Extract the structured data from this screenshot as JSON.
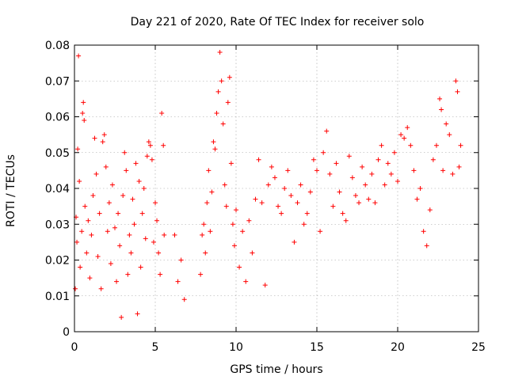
{
  "chart_data": {
    "type": "scatter",
    "title": "Day 221 of 2020, Rate Of TEC Index for receiver solo",
    "xlabel": "GPS time / hours",
    "ylabel": "ROTI / TECUs",
    "xlim": [
      0,
      25
    ],
    "ylim": [
      0,
      0.08
    ],
    "xticks": [
      0,
      5,
      10,
      15,
      20,
      25
    ],
    "xtick_labels": [
      "0",
      "5",
      "10",
      "15",
      "20",
      "25"
    ],
    "yticks": [
      0,
      0.01,
      0.02,
      0.03,
      0.04,
      0.05,
      0.06,
      0.07,
      0.08
    ],
    "ytick_labels": [
      "0",
      "0.01",
      "0.02",
      "0.03",
      "0.04",
      "0.05",
      "0.06",
      "0.07",
      "0.08"
    ],
    "grid": true,
    "marker": "+",
    "color": "#ff0000",
    "series": [
      {
        "name": "ROTI",
        "points": [
          [
            0.05,
            0.012
          ],
          [
            0.1,
            0.032
          ],
          [
            0.15,
            0.025
          ],
          [
            0.2,
            0.051
          ],
          [
            0.25,
            0.077
          ],
          [
            0.3,
            0.042
          ],
          [
            0.35,
            0.018
          ],
          [
            0.45,
            0.028
          ],
          [
            0.5,
            0.061
          ],
          [
            0.55,
            0.064
          ],
          [
            0.6,
            0.059
          ],
          [
            0.65,
            0.035
          ],
          [
            0.75,
            0.022
          ],
          [
            0.85,
            0.031
          ],
          [
            0.95,
            0.015
          ],
          [
            1.05,
            0.027
          ],
          [
            1.15,
            0.038
          ],
          [
            1.25,
            0.054
          ],
          [
            1.35,
            0.044
          ],
          [
            1.45,
            0.021
          ],
          [
            1.55,
            0.033
          ],
          [
            1.65,
            0.012
          ],
          [
            1.75,
            0.053
          ],
          [
            1.85,
            0.055
          ],
          [
            1.95,
            0.046
          ],
          [
            2.05,
            0.028
          ],
          [
            2.15,
            0.036
          ],
          [
            2.25,
            0.019
          ],
          [
            2.35,
            0.041
          ],
          [
            2.5,
            0.029
          ],
          [
            2.6,
            0.014
          ],
          [
            2.7,
            0.033
          ],
          [
            2.8,
            0.024
          ],
          [
            2.9,
            0.004
          ],
          [
            3.0,
            0.038
          ],
          [
            3.1,
            0.05
          ],
          [
            3.2,
            0.045
          ],
          [
            3.3,
            0.016
          ],
          [
            3.4,
            0.027
          ],
          [
            3.5,
            0.022
          ],
          [
            3.6,
            0.037
          ],
          [
            3.7,
            0.03
          ],
          [
            3.8,
            0.047
          ],
          [
            3.9,
            0.005
          ],
          [
            4.0,
            0.042
          ],
          [
            4.1,
            0.018
          ],
          [
            4.2,
            0.033
          ],
          [
            4.3,
            0.04
          ],
          [
            4.4,
            0.026
          ],
          [
            4.5,
            0.049
          ],
          [
            4.6,
            0.053
          ],
          [
            4.7,
            0.052
          ],
          [
            4.8,
            0.048
          ],
          [
            4.9,
            0.025
          ],
          [
            5.0,
            0.036
          ],
          [
            5.1,
            0.031
          ],
          [
            5.2,
            0.022
          ],
          [
            5.3,
            0.016
          ],
          [
            5.4,
            0.061
          ],
          [
            5.5,
            0.052
          ],
          [
            5.55,
            0.027
          ],
          [
            6.2,
            0.027
          ],
          [
            6.4,
            0.014
          ],
          [
            6.6,
            0.02
          ],
          [
            6.8,
            0.009
          ],
          [
            7.8,
            0.016
          ],
          [
            7.9,
            0.027
          ],
          [
            8.0,
            0.03
          ],
          [
            8.1,
            0.022
          ],
          [
            8.2,
            0.036
          ],
          [
            8.3,
            0.045
          ],
          [
            8.4,
            0.028
          ],
          [
            8.5,
            0.039
          ],
          [
            8.6,
            0.053
          ],
          [
            8.7,
            0.051
          ],
          [
            8.8,
            0.061
          ],
          [
            8.9,
            0.067
          ],
          [
            9.0,
            0.078
          ],
          [
            9.1,
            0.07
          ],
          [
            9.2,
            0.058
          ],
          [
            9.3,
            0.041
          ],
          [
            9.4,
            0.035
          ],
          [
            9.5,
            0.064
          ],
          [
            9.6,
            0.071
          ],
          [
            9.7,
            0.047
          ],
          [
            9.8,
            0.03
          ],
          [
            9.9,
            0.024
          ],
          [
            10.0,
            0.034
          ],
          [
            10.2,
            0.018
          ],
          [
            10.4,
            0.028
          ],
          [
            10.6,
            0.014
          ],
          [
            10.8,
            0.031
          ],
          [
            11.0,
            0.022
          ],
          [
            11.2,
            0.037
          ],
          [
            11.4,
            0.048
          ],
          [
            11.6,
            0.036
          ],
          [
            11.8,
            0.013
          ],
          [
            12.0,
            0.041
          ],
          [
            12.2,
            0.046
          ],
          [
            12.4,
            0.043
          ],
          [
            12.6,
            0.035
          ],
          [
            12.8,
            0.033
          ],
          [
            13.0,
            0.04
          ],
          [
            13.2,
            0.045
          ],
          [
            13.4,
            0.038
          ],
          [
            13.6,
            0.025
          ],
          [
            13.8,
            0.036
          ],
          [
            14.0,
            0.041
          ],
          [
            14.2,
            0.03
          ],
          [
            14.4,
            0.033
          ],
          [
            14.6,
            0.039
          ],
          [
            14.8,
            0.048
          ],
          [
            15.0,
            0.045
          ],
          [
            15.2,
            0.028
          ],
          [
            15.4,
            0.05
          ],
          [
            15.6,
            0.056
          ],
          [
            15.8,
            0.044
          ],
          [
            16.0,
            0.035
          ],
          [
            16.2,
            0.047
          ],
          [
            16.4,
            0.039
          ],
          [
            16.6,
            0.033
          ],
          [
            16.8,
            0.031
          ],
          [
            17.0,
            0.049
          ],
          [
            17.2,
            0.043
          ],
          [
            17.4,
            0.038
          ],
          [
            17.6,
            0.036
          ],
          [
            17.8,
            0.046
          ],
          [
            18.0,
            0.041
          ],
          [
            18.2,
            0.037
          ],
          [
            18.4,
            0.044
          ],
          [
            18.6,
            0.036
          ],
          [
            18.8,
            0.048
          ],
          [
            19.0,
            0.052
          ],
          [
            19.2,
            0.041
          ],
          [
            19.4,
            0.047
          ],
          [
            19.6,
            0.044
          ],
          [
            19.8,
            0.05
          ],
          [
            20.0,
            0.042
          ],
          [
            20.2,
            0.055
          ],
          [
            20.4,
            0.054
          ],
          [
            20.6,
            0.057
          ],
          [
            20.8,
            0.052
          ],
          [
            21.0,
            0.045
          ],
          [
            21.2,
            0.037
          ],
          [
            21.4,
            0.04
          ],
          [
            21.6,
            0.028
          ],
          [
            21.8,
            0.024
          ],
          [
            22.0,
            0.034
          ],
          [
            22.2,
            0.048
          ],
          [
            22.4,
            0.052
          ],
          [
            22.6,
            0.065
          ],
          [
            22.7,
            0.062
          ],
          [
            22.8,
            0.045
          ],
          [
            23.0,
            0.058
          ],
          [
            23.2,
            0.055
          ],
          [
            23.4,
            0.044
          ],
          [
            23.6,
            0.07
          ],
          [
            23.7,
            0.067
          ],
          [
            23.8,
            0.046
          ],
          [
            23.9,
            0.052
          ]
        ]
      }
    ]
  }
}
